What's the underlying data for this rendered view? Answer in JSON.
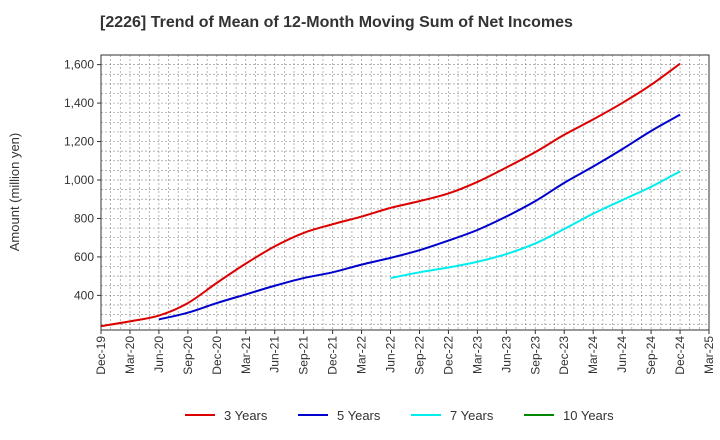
{
  "chart_data": {
    "type": "line",
    "title": "[2226]  Trend of Mean of 12-Month Moving Sum of Net Incomes",
    "ylabel": "Amount (million yen)",
    "xlabel": "",
    "ylim": [
      220,
      1650
    ],
    "yticks": [
      400,
      600,
      800,
      1000,
      1200,
      1400,
      1600
    ],
    "ytick_labels": [
      "400",
      "600",
      "800",
      "1,000",
      "1,200",
      "1,400",
      "1,600"
    ],
    "xtick_labels": [
      "Dec-19",
      "Mar-20",
      "Jun-20",
      "Sep-20",
      "Dec-20",
      "Mar-21",
      "Jun-21",
      "Sep-21",
      "Dec-21",
      "Mar-22",
      "Jun-22",
      "Sep-22",
      "Dec-22",
      "Mar-23",
      "Jun-23",
      "Sep-23",
      "Dec-23",
      "Mar-24",
      "Jun-24",
      "Sep-24",
      "Dec-24",
      "Mar-25"
    ],
    "grid": true,
    "legend_position": "bottom",
    "series": [
      {
        "name": "3 Years",
        "color": "#dd0000",
        "x": [
          "Dec-19",
          "Mar-20",
          "Jun-20",
          "Sep-20",
          "Dec-20",
          "Mar-21",
          "Jun-21",
          "Sep-21",
          "Dec-21",
          "Mar-22",
          "Jun-22",
          "Sep-22",
          "Dec-22",
          "Mar-23",
          "Jun-23",
          "Sep-23",
          "Dec-23",
          "Mar-24",
          "Jun-24",
          "Sep-24",
          "Dec-24"
        ],
        "values": [
          240,
          265,
          295,
          360,
          465,
          565,
          655,
          725,
          770,
          810,
          855,
          890,
          930,
          990,
          1065,
          1145,
          1235,
          1315,
          1400,
          1495,
          1605
        ]
      },
      {
        "name": "5 Years",
        "color": "#0000cc",
        "x": [
          "Jun-20",
          "Sep-20",
          "Dec-20",
          "Mar-21",
          "Jun-21",
          "Sep-21",
          "Dec-21",
          "Mar-22",
          "Jun-22",
          "Sep-22",
          "Dec-22",
          "Mar-23",
          "Jun-23",
          "Sep-23",
          "Dec-23",
          "Mar-24",
          "Jun-24",
          "Sep-24",
          "Dec-24"
        ],
        "values": [
          275,
          310,
          360,
          405,
          450,
          490,
          520,
          560,
          595,
          635,
          685,
          740,
          810,
          890,
          985,
          1070,
          1160,
          1255,
          1340
        ]
      },
      {
        "name": "7 Years",
        "color": "#00eeee",
        "x": [
          "Jun-22",
          "Sep-22",
          "Dec-22",
          "Mar-23",
          "Jun-23",
          "Sep-23",
          "Dec-23",
          "Mar-24",
          "Jun-24",
          "Sep-24",
          "Dec-24"
        ],
        "values": [
          490,
          520,
          545,
          575,
          615,
          670,
          745,
          825,
          895,
          965,
          1045
        ]
      },
      {
        "name": "10 Years",
        "color": "#008800",
        "x": [],
        "values": []
      }
    ]
  }
}
